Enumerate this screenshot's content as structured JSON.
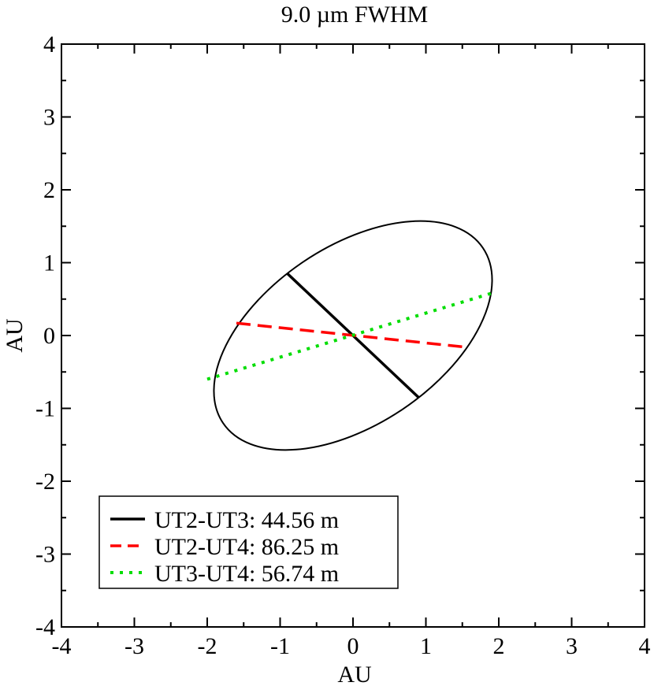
{
  "chart_data": {
    "type": "line",
    "title": "9.0 µm FWHM",
    "xlabel": "AU",
    "ylabel": "AU",
    "xlim": [
      -4,
      4
    ],
    "ylim": [
      -4,
      4
    ],
    "xticks": [
      -4,
      -3,
      -2,
      -1,
      0,
      1,
      2,
      3,
      4
    ],
    "yticks": [
      -4,
      -3,
      -2,
      -1,
      0,
      1,
      2,
      3,
      4
    ],
    "xtick_labels": [
      "-4",
      "-3",
      "-2",
      "-1",
      "0",
      "1",
      "2",
      "3",
      "4"
    ],
    "ytick_labels": [
      "-4",
      "-3",
      "-2",
      "-1",
      "0",
      "1",
      "2",
      "3",
      "4"
    ],
    "grid": false,
    "legend_position": "bottom-left",
    "ellipse": {
      "center": [
        0,
        0
      ],
      "semi_major": 2.15,
      "semi_minor": 1.22,
      "angle_deg": 34,
      "color": "#000000"
    },
    "series": [
      {
        "name": "UT2-UT3: 44.56 m",
        "color": "#000000",
        "style": "solid",
        "x": [
          -0.9,
          0.9
        ],
        "y": [
          0.85,
          -0.85
        ]
      },
      {
        "name": "UT2-UT4: 86.25 m",
        "color": "#ff0000",
        "style": "dashed",
        "x": [
          -1.6,
          1.55
        ],
        "y": [
          0.17,
          -0.16
        ]
      },
      {
        "name": "UT3-UT4: 56.74 m",
        "color": "#00dd00",
        "style": "dotted",
        "x": [
          -2.0,
          1.9
        ],
        "y": [
          -0.6,
          0.58
        ]
      }
    ]
  }
}
